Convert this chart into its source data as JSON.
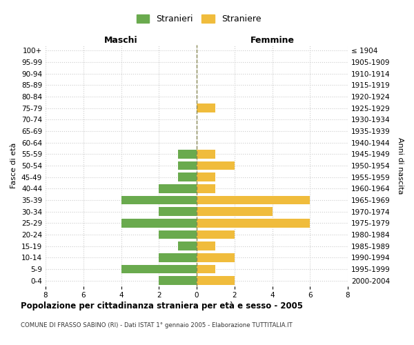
{
  "age_groups": [
    "100+",
    "95-99",
    "90-94",
    "85-89",
    "80-84",
    "75-79",
    "70-74",
    "65-69",
    "60-64",
    "55-59",
    "50-54",
    "45-49",
    "40-44",
    "35-39",
    "30-34",
    "25-29",
    "20-24",
    "15-19",
    "10-14",
    "5-9",
    "0-4"
  ],
  "birth_years": [
    "≤ 1904",
    "1905-1909",
    "1910-1914",
    "1915-1919",
    "1920-1924",
    "1925-1929",
    "1930-1934",
    "1935-1939",
    "1940-1944",
    "1945-1949",
    "1950-1954",
    "1955-1959",
    "1960-1964",
    "1965-1969",
    "1970-1974",
    "1975-1979",
    "1980-1984",
    "1985-1989",
    "1990-1994",
    "1995-1999",
    "2000-2004"
  ],
  "maschi": [
    0,
    0,
    0,
    0,
    0,
    0,
    0,
    0,
    0,
    1,
    1,
    1,
    2,
    4,
    2,
    4,
    2,
    1,
    2,
    4,
    2
  ],
  "femmine": [
    0,
    0,
    0,
    0,
    0,
    1,
    0,
    0,
    0,
    1,
    2,
    1,
    1,
    6,
    4,
    6,
    2,
    1,
    2,
    1,
    2
  ],
  "color_maschi": "#6aaa4e",
  "color_femmine": "#f0bc3c",
  "background_color": "#ffffff",
  "grid_color": "#cccccc",
  "title": "Popolazione per cittadinanza straniera per età e sesso - 2005",
  "subtitle": "COMUNE DI FRASSO SABINO (RI) - Dati ISTAT 1° gennaio 2005 - Elaborazione TUTTITALIA.IT",
  "xlabel_left": "Maschi",
  "xlabel_right": "Femmine",
  "ylabel_left": "Fasce di età",
  "ylabel_right": "Anni di nascita",
  "legend_maschi": "Stranieri",
  "legend_femmine": "Straniere",
  "xlim": 8,
  "bar_height": 0.75
}
